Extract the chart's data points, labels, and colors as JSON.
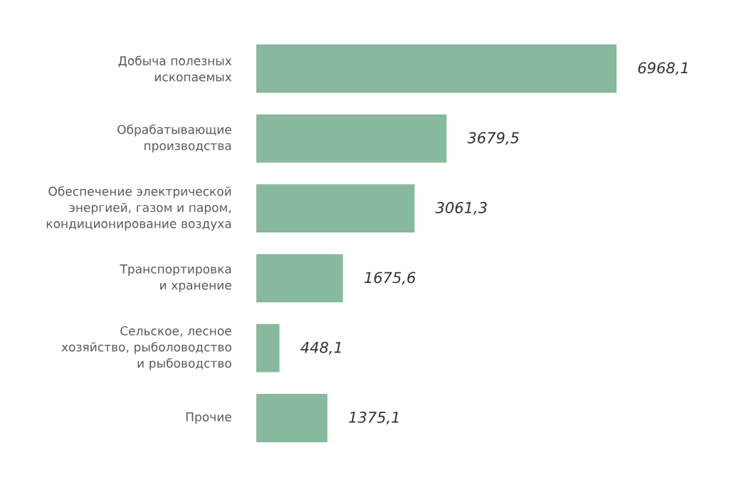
{
  "chart_data": {
    "type": "bar",
    "orientation": "horizontal",
    "categories": [
      "Добыча полезных ископаемых",
      "Обрабатывающие производства",
      "Обеспечение электрической энергией, газом и паром, кондиционирование воздуха",
      "Транспортировка и хранение",
      "Сельское, лесное хозяйство, рыболоводство и рыбоводство",
      "Прочие"
    ],
    "values": [
      6968.1,
      3679.5,
      3061.3,
      1675.6,
      448.1,
      1375.1
    ],
    "value_labels": [
      "6968,1",
      "3679,5",
      "3061,3",
      "1675,6",
      "448,1",
      "1375,1"
    ],
    "color": "#88b89d"
  }
}
